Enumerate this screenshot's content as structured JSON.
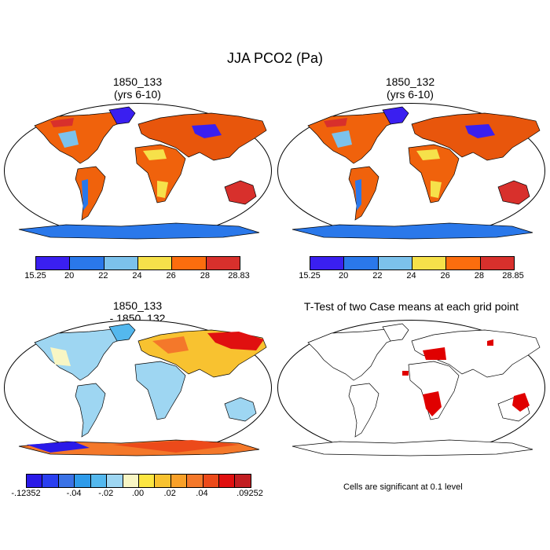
{
  "title": "JJA PCO2 (Pa)",
  "panels": [
    {
      "title": "1850_133\n(yrs 6-10)"
    },
    {
      "title": "1850_132\n(yrs 6-10)"
    },
    {
      "title": "1850_133\n- 1850_132"
    },
    {
      "title": "T-Test of two Case means at each grid point"
    }
  ],
  "colorbar1": {
    "colors": [
      "#3a1ff0",
      "#2a78ea",
      "#7cc2ec",
      "#f6e14a",
      "#fb6d0e",
      "#d8302c"
    ],
    "labels": [
      "15.25",
      "20",
      "22",
      "24",
      "26",
      "28",
      "28.83"
    ]
  },
  "colorbar2": {
    "colors": [
      "#3a1ff0",
      "#2a78ea",
      "#7cc2ec",
      "#f6e14a",
      "#fb6d0e",
      "#d8302c"
    ],
    "labels": [
      "15.25",
      "20",
      "22",
      "24",
      "26",
      "28",
      "28.85"
    ]
  },
  "colorbar3": {
    "colors": [
      "#2a1ae8",
      "#2a3ff0",
      "#3a72e6",
      "#2e9bea",
      "#54b8ee",
      "#9ed6f2",
      "#f8f6c4",
      "#fce642",
      "#f8c230",
      "#f8a028",
      "#f4782a",
      "#ec4a1a",
      "#e01010",
      "#c21e22"
    ],
    "labels": [
      ".12352",
      "-.04",
      "-.02",
      ".00",
      ".02",
      ".04",
      ".09252"
    ],
    "first_label_prefix": "-"
  },
  "note": "Cells are significant at 0.1 level",
  "colors": {
    "land_warm": "#f0620c",
    "land_hot": "#d8302c",
    "ocean": "#ffffff",
    "significant": "#e00000"
  }
}
